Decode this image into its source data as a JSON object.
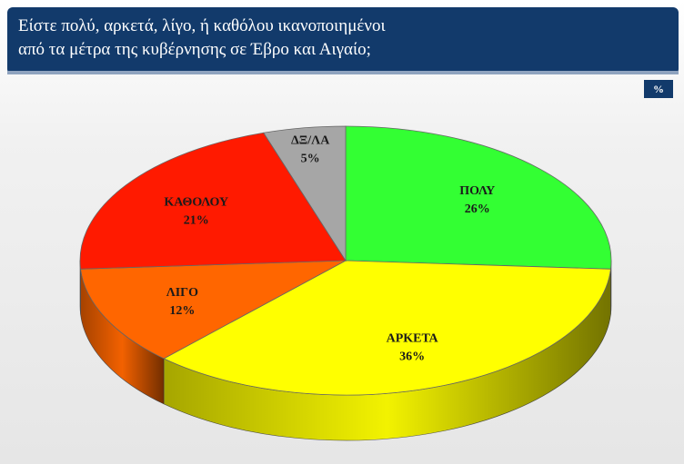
{
  "chart_data": {
    "type": "pie3d",
    "title": [
      "Είστε πολύ, αρκετά, λίγο, ή καθόλου ικανοποιημένοι",
      "από τα μέτρα της κυβέρνησης σε Έβρο και Αιγαίο;"
    ],
    "unit_label": "%",
    "categories": [
      "ΠΟΛΥ",
      "ΑΡΚΕΤΑ",
      "ΛΙΓΟ",
      "ΚΑΘΟΛΟΥ",
      "ΔΞ/ΛΑ"
    ],
    "values": [
      26,
      36,
      12,
      21,
      5
    ],
    "value_labels": [
      "26%",
      "36%",
      "12%",
      "21%",
      "5%"
    ],
    "colors": [
      "#33ff33",
      "#ffff00",
      "#ff6600",
      "#ff1a00",
      "#a6a6a6"
    ]
  }
}
